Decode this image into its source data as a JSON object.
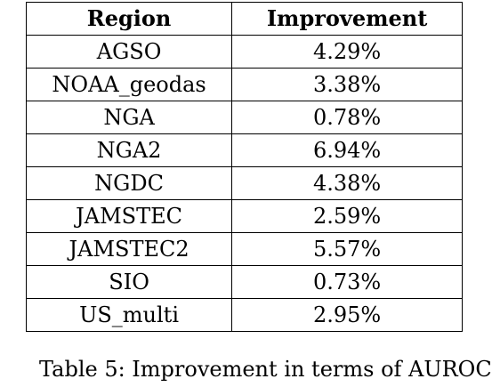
{
  "table": {
    "headers": [
      "Region",
      "Improvement"
    ],
    "rows": [
      [
        "AGSO",
        "4.29%"
      ],
      [
        "NOAA_geodas",
        "3.38%"
      ],
      [
        "NGA",
        "0.78%"
      ],
      [
        "NGA2",
        "6.94%"
      ],
      [
        "NGDC",
        "4.38%"
      ],
      [
        "JAMSTEC",
        "2.59%"
      ],
      [
        "JAMSTEC2",
        "5.57%"
      ],
      [
        "SIO",
        "0.73%"
      ],
      [
        "US_multi",
        "2.95%"
      ]
    ]
  },
  "caption_fragment": "Table 5: Improvement in terms of AUROC"
}
